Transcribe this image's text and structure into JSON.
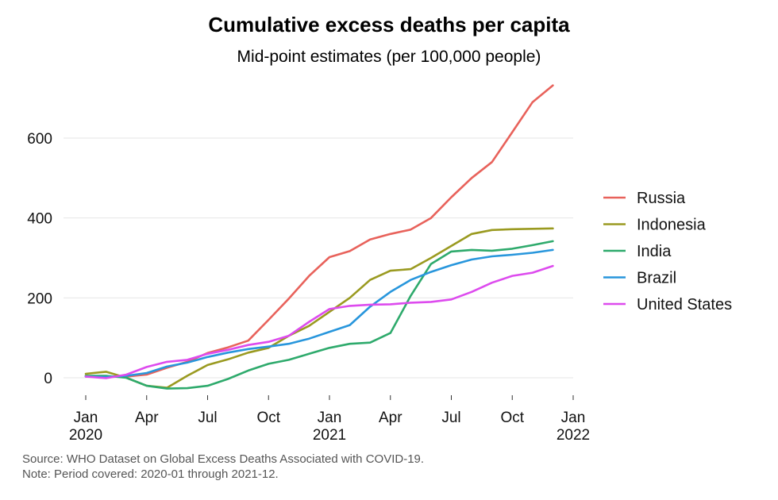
{
  "title": "Cumulative excess deaths per capita",
  "subtitle": "Mid-point estimates (per 100,000 people)",
  "caption": {
    "source": "Source: WHO Dataset on Global Excess Deaths Associated with COVID-19.",
    "note": "Note: Period covered: 2020-01 through 2021-12."
  },
  "chart_data": {
    "type": "line",
    "title": "Cumulative excess deaths per capita",
    "subtitle": "Mid-point estimates (per 100,000 people)",
    "xlabel": "",
    "ylabel": "",
    "x": [
      "2020-01",
      "2020-02",
      "2020-03",
      "2020-04",
      "2020-05",
      "2020-06",
      "2020-07",
      "2020-08",
      "2020-09",
      "2020-10",
      "2020-11",
      "2020-12",
      "2021-01",
      "2021-02",
      "2021-03",
      "2021-04",
      "2021-05",
      "2021-06",
      "2021-07",
      "2021-08",
      "2021-09",
      "2021-10",
      "2021-11",
      "2021-12"
    ],
    "x_ticks": [
      {
        "date": "2020-01",
        "label": "Jan",
        "label2": "2020"
      },
      {
        "date": "2020-04",
        "label": "Apr",
        "label2": ""
      },
      {
        "date": "2020-07",
        "label": "Jul",
        "label2": ""
      },
      {
        "date": "2020-10",
        "label": "Oct",
        "label2": ""
      },
      {
        "date": "2021-01",
        "label": "Jan",
        "label2": "2021"
      },
      {
        "date": "2021-04",
        "label": "Apr",
        "label2": ""
      },
      {
        "date": "2021-07",
        "label": "Jul",
        "label2": ""
      },
      {
        "date": "2021-10",
        "label": "Oct",
        "label2": ""
      },
      {
        "date": "2022-01",
        "label": "Jan",
        "label2": "2022"
      }
    ],
    "xlim": [
      "2020-01",
      "2022-01"
    ],
    "ylim": [
      -30,
      760
    ],
    "y_ticks": [
      0,
      200,
      400,
      600
    ],
    "grid": true,
    "legend_position": "right",
    "series": [
      {
        "name": "Russia",
        "color": "#E8625B",
        "values": [
          5,
          2,
          3,
          8,
          25,
          40,
          62,
          76,
          93,
          145,
          198,
          255,
          302,
          317,
          346,
          360,
          371,
          400,
          452,
          500,
          540,
          615,
          690,
          732
        ]
      },
      {
        "name": "Indonesia",
        "color": "#9A9A20",
        "values": [
          10,
          15,
          0,
          -20,
          -25,
          5,
          32,
          46,
          63,
          75,
          105,
          130,
          165,
          200,
          245,
          268,
          272,
          300,
          330,
          360,
          370,
          372,
          373,
          374
        ]
      },
      {
        "name": "India",
        "color": "#2EAA6C",
        "values": [
          5,
          5,
          0,
          -20,
          -27,
          -26,
          -20,
          -3,
          18,
          35,
          45,
          60,
          75,
          85,
          88,
          112,
          205,
          285,
          316,
          320,
          318,
          323,
          332,
          342
        ]
      },
      {
        "name": "Brazil",
        "color": "#2896DC",
        "values": [
          3,
          2,
          5,
          12,
          28,
          38,
          52,
          63,
          72,
          78,
          85,
          98,
          115,
          132,
          178,
          215,
          245,
          265,
          282,
          296,
          304,
          308,
          313,
          320
        ]
      },
      {
        "name": "United States",
        "color": "#DD4BEE",
        "values": [
          3,
          -1,
          8,
          27,
          40,
          45,
          60,
          70,
          82,
          90,
          105,
          140,
          172,
          180,
          183,
          184,
          188,
          190,
          196,
          215,
          238,
          255,
          263,
          280
        ]
      }
    ]
  }
}
